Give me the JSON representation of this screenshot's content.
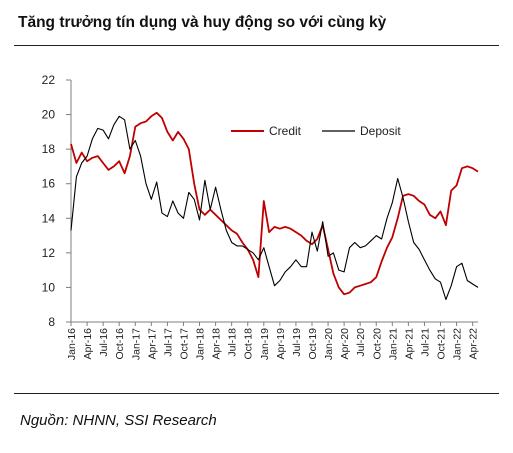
{
  "title": "Tăng trưởng tín dụng và huy động so với cùng kỳ",
  "source": "Nguồn: NHNN, SSI Research",
  "colors": {
    "credit": "#c00000",
    "deposit": "#000000",
    "axis": "#7f7f7f"
  },
  "chart_data": {
    "type": "line",
    "title": "Tăng trưởng tín dụng và huy động so với cùng kỳ",
    "xlabel": "",
    "ylabel": "",
    "ylim": [
      8,
      22
    ],
    "yticks": [
      8,
      10,
      12,
      14,
      16,
      18,
      20,
      22
    ],
    "grid": false,
    "legend": "top-right",
    "x_tick_labels": [
      "Jan-16",
      "Apr-16",
      "Jul-16",
      "Oct-16",
      "Jan-17",
      "Apr-17",
      "Jul-17",
      "Oct-17",
      "Jan-18",
      "Apr-18",
      "Jul-18",
      "Oct-18",
      "Jan-19",
      "Apr-19",
      "Jul-19",
      "Oct-19",
      "Jan-20",
      "Apr-20",
      "Jul-20",
      "Oct-20",
      "Jan-21",
      "Apr-21",
      "Jul-21",
      "Oct-21",
      "Jan-22",
      "Apr-22"
    ],
    "series": [
      {
        "name": "Credit",
        "values": [
          18.3,
          17.2,
          17.8,
          17.3,
          17.5,
          17.6,
          17.2,
          16.8,
          17.0,
          17.3,
          16.6,
          17.6,
          19.3,
          19.5,
          19.6,
          19.9,
          20.1,
          19.8,
          19.0,
          18.5,
          19.0,
          18.6,
          18.0,
          16.0,
          14.5,
          14.2,
          14.5,
          14.2,
          13.9,
          13.6,
          13.3,
          13.1,
          12.6,
          12.2,
          11.6,
          10.6,
          15.0,
          13.2,
          13.5,
          13.4,
          13.5,
          13.4,
          13.2,
          13.0,
          12.7,
          12.5,
          12.8,
          13.6,
          12.2,
          10.8,
          10.0,
          9.6,
          9.7,
          10.0,
          10.1,
          10.2,
          10.3,
          10.6,
          11.5,
          12.3,
          12.9,
          14.0,
          15.3,
          15.4,
          15.3,
          15.0,
          14.8,
          14.2,
          14.0,
          14.4,
          13.6,
          15.6,
          15.9,
          16.9,
          17.0,
          16.9,
          16.7
        ]
      },
      {
        "name": "Deposit",
        "values": [
          13.3,
          16.4,
          17.2,
          17.6,
          18.6,
          19.2,
          19.1,
          18.6,
          19.4,
          19.9,
          19.7,
          18.0,
          18.5,
          17.6,
          16.0,
          15.1,
          16.1,
          14.3,
          14.1,
          15.0,
          14.3,
          14.0,
          15.5,
          15.1,
          13.9,
          16.2,
          14.5,
          15.8,
          14.5,
          13.3,
          12.6,
          12.4,
          12.4,
          12.2,
          12.0,
          11.6,
          12.3,
          11.2,
          10.1,
          10.4,
          10.9,
          11.2,
          11.6,
          11.2,
          11.2,
          13.2,
          12.1,
          13.8,
          11.8,
          12.0,
          11.0,
          10.9,
          12.3,
          12.6,
          12.3,
          12.4,
          12.7,
          13.0,
          12.8,
          14.0,
          14.9,
          16.3,
          15.2,
          13.8,
          12.6,
          12.2,
          11.6,
          11.0,
          10.5,
          10.3,
          9.3,
          10.1,
          11.2,
          11.4,
          10.4,
          10.2,
          10.0
        ]
      }
    ]
  }
}
